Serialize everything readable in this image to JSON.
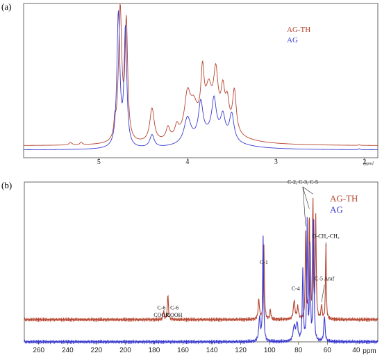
{
  "chart_data": [
    {
      "type": "line",
      "panel_label": "(a)",
      "xlabel_unit": "[ppm]",
      "xlim": [
        5.85,
        1.85
      ],
      "x_ticks": [
        5,
        4,
        3,
        2
      ],
      "x_tick_labels": [
        "5",
        "4",
        "3",
        "2"
      ],
      "legend": [
        {
          "name": "AG-TH",
          "color": "#b5442e"
        },
        {
          "name": "AG",
          "color": "#3a3ad0"
        }
      ],
      "series": [
        {
          "name": "AG-TH",
          "color": "#b5442e",
          "baseline": 0.035,
          "peaks": [
            {
              "center": 5.32,
              "height": 0.03,
              "width": 0.02
            },
            {
              "center": 5.2,
              "height": 0.03,
              "width": 0.015
            },
            {
              "center": 4.82,
              "height": 0.18,
              "width": 0.012
            },
            {
              "center": 4.76,
              "height": 1.6,
              "width": 0.022
            },
            {
              "center": 4.69,
              "height": 1.4,
              "width": 0.018
            },
            {
              "center": 4.4,
              "height": 0.4,
              "width": 0.03
            },
            {
              "center": 4.22,
              "height": 0.14,
              "width": 0.025
            },
            {
              "center": 4.12,
              "height": 0.13,
              "width": 0.025
            },
            {
              "center": 4.0,
              "height": 0.45,
              "width": 0.04
            },
            {
              "center": 3.93,
              "height": 0.28,
              "width": 0.05
            },
            {
              "center": 3.83,
              "height": 0.6,
              "width": 0.022
            },
            {
              "center": 3.76,
              "height": 0.38,
              "width": 0.04
            },
            {
              "center": 3.68,
              "height": 0.58,
              "width": 0.03
            },
            {
              "center": 3.6,
              "height": 0.4,
              "width": 0.025
            },
            {
              "center": 3.55,
              "height": 0.3,
              "width": 0.025
            },
            {
              "center": 3.47,
              "height": 0.5,
              "width": 0.025
            },
            {
              "center": 3.72,
              "height": 0.25,
              "width": 0.25
            },
            {
              "center": 2.06,
              "height": 0.006,
              "width": 0.01
            }
          ]
        },
        {
          "name": "AG",
          "color": "#3a3ad0",
          "baseline": 0.005,
          "peaks": [
            {
              "center": 4.78,
              "height": 1.6,
              "width": 0.02
            },
            {
              "center": 4.7,
              "height": 1.4,
              "width": 0.018
            },
            {
              "center": 4.4,
              "height": 0.15,
              "width": 0.03
            },
            {
              "center": 4.0,
              "height": 0.3,
              "width": 0.045
            },
            {
              "center": 3.85,
              "height": 0.42,
              "width": 0.03
            },
            {
              "center": 3.7,
              "height": 0.42,
              "width": 0.03
            },
            {
              "center": 3.6,
              "height": 0.25,
              "width": 0.03
            },
            {
              "center": 3.5,
              "height": 0.32,
              "width": 0.03
            },
            {
              "center": 3.72,
              "height": 0.18,
              "width": 0.25
            },
            {
              "center": 2.06,
              "height": 0.012,
              "width": 0.01
            }
          ]
        }
      ]
    },
    {
      "type": "line",
      "panel_label": "(b)",
      "xlabel": "ppm",
      "xlim": [
        270,
        25
      ],
      "x_ticks": [
        260,
        240,
        220,
        200,
        180,
        160,
        140,
        120,
        100,
        80,
        60,
        40
      ],
      "x_tick_labels": [
        "260",
        "240",
        "220",
        "200",
        "180",
        "160",
        "140",
        "120",
        "100",
        "80",
        "60",
        "40"
      ],
      "legend": [
        {
          "name": "AG-TH",
          "color": "#b5442e"
        },
        {
          "name": "AG",
          "color": "#3a3ad0"
        }
      ],
      "annotations": [
        {
          "text": "C-2, C-3, C-5",
          "x": 77,
          "y_text": 0.93
        },
        {
          "text": "O-CH₂-CH₃",
          "x": 61,
          "y_text": 0.56
        },
        {
          "text": "C-1",
          "x": 104,
          "y_text": 0.38
        },
        {
          "text": "C-4",
          "x": 82,
          "y_text": 0.2
        },
        {
          "text": "C-5 Araf",
          "x": 62,
          "y_text": 0.27
        },
        {
          "text": "C-6",
          "x": 175,
          "y_text": 0.07
        },
        {
          "text": "COOR",
          "x": 175,
          "y_text": 0.02
        },
        {
          "text": "C-6",
          "x": 166,
          "y_text": 0.07
        },
        {
          "text": "COOH",
          "x": 166,
          "y_text": 0.02
        }
      ],
      "series": [
        {
          "name": "AG-TH",
          "color": "#b5442e",
          "baseline": 0.0,
          "peaks": [
            {
              "center": 173.5,
              "height": 0.06,
              "width": 0.4
            },
            {
              "center": 170.5,
              "height": 0.18,
              "width": 0.4
            },
            {
              "center": 107.5,
              "height": 0.14,
              "width": 0.5
            },
            {
              "center": 104.0,
              "height": 0.52,
              "width": 0.4
            },
            {
              "center": 99.5,
              "height": 0.07,
              "width": 0.4
            },
            {
              "center": 83.0,
              "height": 0.13,
              "width": 0.6
            },
            {
              "center": 80.5,
              "height": 0.08,
              "width": 0.6
            },
            {
              "center": 75.0,
              "height": 0.63,
              "width": 0.35
            },
            {
              "center": 72.5,
              "height": 0.75,
              "width": 0.35
            },
            {
              "center": 70.0,
              "height": 0.85,
              "width": 0.35
            },
            {
              "center": 68.0,
              "height": 0.7,
              "width": 0.35
            },
            {
              "center": 64.0,
              "height": 0.1,
              "width": 0.4
            },
            {
              "center": 61.0,
              "height": 0.55,
              "width": 0.3
            }
          ]
        },
        {
          "name": "AG",
          "color": "#3a3ad0",
          "baseline": -0.1,
          "peaks": [
            {
              "center": 107.0,
              "height": 0.16,
              "width": 0.6
            },
            {
              "center": 104.5,
              "height": 0.72,
              "width": 0.4
            },
            {
              "center": 83.0,
              "height": 0.1,
              "width": 0.8
            },
            {
              "center": 81.0,
              "height": 0.12,
              "width": 0.8
            },
            {
              "center": 77.0,
              "height": 0.5,
              "width": 0.4
            },
            {
              "center": 74.0,
              "height": 0.82,
              "width": 0.35
            },
            {
              "center": 72.0,
              "height": 0.7,
              "width": 0.35
            },
            {
              "center": 69.5,
              "height": 0.93,
              "width": 0.35
            },
            {
              "center": 62.0,
              "height": 0.18,
              "width": 0.5
            }
          ]
        }
      ]
    }
  ]
}
